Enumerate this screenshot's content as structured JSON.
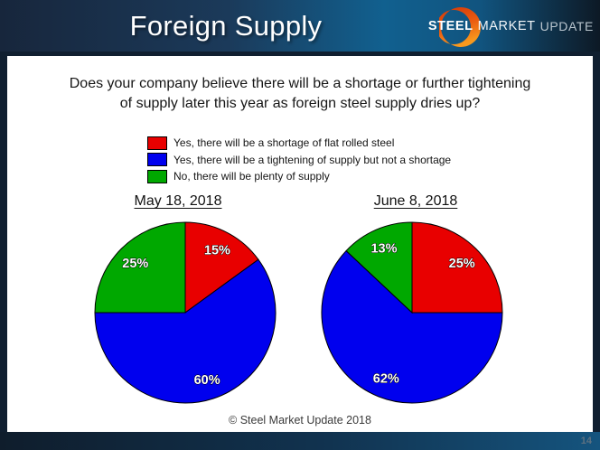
{
  "header": {
    "title": "Foreign Supply",
    "logo": {
      "steel": "STEEL",
      "market": "MARKET",
      "update": "UPDATE"
    },
    "accent_orange": "#e8540f"
  },
  "question": {
    "line1": "Does your company believe there will be a shortage or further tightening",
    "line2": "of supply later this year as foreign steel supply dries up?"
  },
  "legend": {
    "items": [
      {
        "label": "Yes, there will be a shortage of flat rolled steel",
        "color": "#e80000"
      },
      {
        "label": "Yes, there will be a tightening of supply but not a shortage",
        "color": "#0000ee"
      },
      {
        "label": "No, there will be plenty of supply",
        "color": "#00a800"
      }
    ]
  },
  "chart_data": [
    {
      "type": "pie",
      "title": "May 18, 2018",
      "direction": "clockwise",
      "start_angle_deg": 0,
      "legend_position": "above-shared",
      "slices": [
        {
          "label": "Yes, there will be a shortage of flat rolled steel",
          "value": 15,
          "display": "15%",
          "color": "#e80000"
        },
        {
          "label": "Yes, there will be a tightening of supply but not a shortage",
          "value": 60,
          "display": "60%",
          "color": "#0000ee"
        },
        {
          "label": "No, there will be plenty of supply",
          "value": 25,
          "display": "25%",
          "color": "#00a800"
        }
      ]
    },
    {
      "type": "pie",
      "title": "June 8, 2018",
      "direction": "clockwise",
      "start_angle_deg": 0,
      "legend_position": "above-shared",
      "slices": [
        {
          "label": "Yes, there will be a shortage of flat rolled steel",
          "value": 25,
          "display": "25%",
          "color": "#e80000"
        },
        {
          "label": "Yes, there will be a tightening of supply but not a shortage",
          "value": 62,
          "display": "62%",
          "color": "#0000ee"
        },
        {
          "label": "No, there will be plenty of supply",
          "value": 13,
          "display": "13%",
          "color": "#00a800"
        }
      ]
    }
  ],
  "footer": {
    "copyright": "© Steel Market Update 2018",
    "page_number": "14"
  }
}
